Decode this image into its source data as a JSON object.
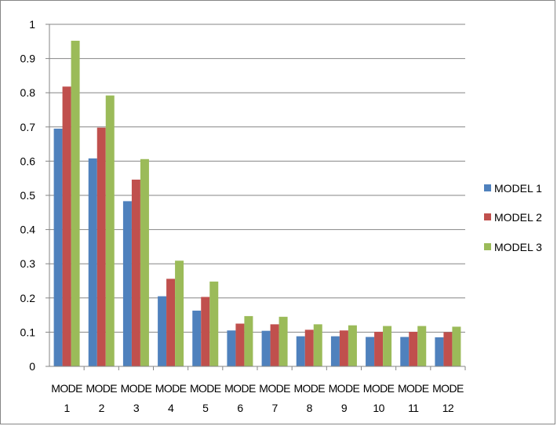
{
  "chart_data": {
    "type": "bar",
    "title": "",
    "xlabel": "",
    "ylabel": "",
    "ylim": [
      0,
      1
    ],
    "yticks": [
      "0",
      "0.1",
      "0.2",
      "0.3",
      "0.4",
      "0.5",
      "0.6",
      "0.7",
      "0.8",
      "0.9",
      "1"
    ],
    "grid": true,
    "legend_position": "right",
    "categories": [
      {
        "line1": "MODE",
        "line2": "1"
      },
      {
        "line1": "MODE",
        "line2": "2"
      },
      {
        "line1": "MODE",
        "line2": "3"
      },
      {
        "line1": "MODE",
        "line2": "4"
      },
      {
        "line1": "MODE",
        "line2": "5"
      },
      {
        "line1": "MODE",
        "line2": "6"
      },
      {
        "line1": "MODE",
        "line2": "7"
      },
      {
        "line1": "MODE",
        "line2": "8"
      },
      {
        "line1": "MODE",
        "line2": "9"
      },
      {
        "line1": "MODE",
        "line2": "10"
      },
      {
        "line1": "MODE",
        "line2": "11"
      },
      {
        "line1": "MODE",
        "line2": "12"
      }
    ],
    "series": [
      {
        "name": "MODEL 1",
        "color": "#4F81BD",
        "values": [
          0.695,
          0.608,
          0.483,
          0.205,
          0.163,
          0.105,
          0.104,
          0.088,
          0.088,
          0.086,
          0.086,
          0.085
        ]
      },
      {
        "name": "MODEL 2",
        "color": "#C0504D",
        "values": [
          0.818,
          0.698,
          0.546,
          0.256,
          0.203,
          0.125,
          0.123,
          0.107,
          0.105,
          0.101,
          0.101,
          0.1
        ]
      },
      {
        "name": "MODEL 3",
        "color": "#9BBB59",
        "values": [
          0.952,
          0.792,
          0.606,
          0.309,
          0.248,
          0.147,
          0.145,
          0.123,
          0.12,
          0.118,
          0.118,
          0.116
        ]
      }
    ]
  }
}
